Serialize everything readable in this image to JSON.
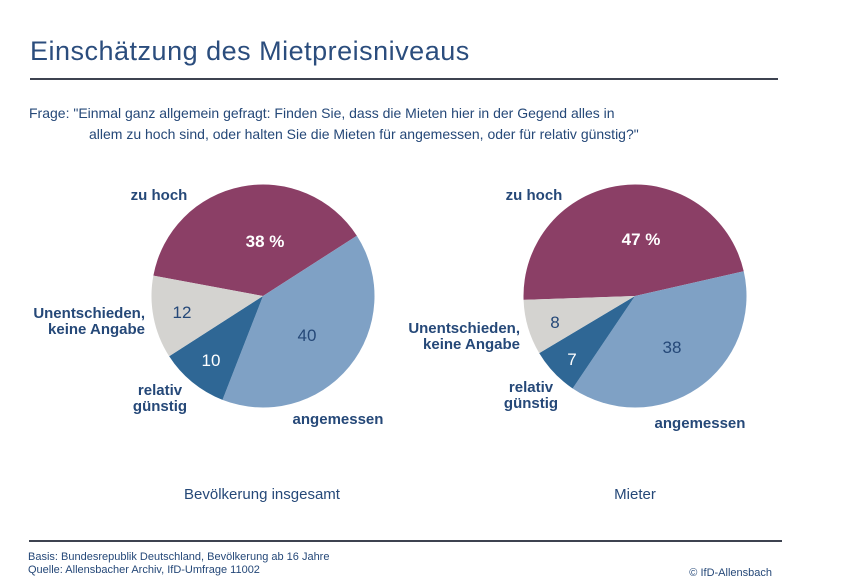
{
  "header": {
    "title": "Einschätzung des Mietpreisniveaus",
    "question_line1": "Frage: \"Einmal ganz allgemein gefragt: Finden Sie, dass die Mieten hier in der Gegend alles in",
    "question_line2": "allem zu hoch sind, oder halten Sie die Mieten für angemessen, oder für relativ günstig?\""
  },
  "colors": {
    "text_navy": "#254878",
    "title_navy": "#2b4d7d",
    "divider": "#3d4350",
    "slice_zu_hoch": "#8B3F66",
    "slice_angemessen": "#7FA1C5",
    "slice_relativ_guenstig": "#2F6795",
    "slice_unentschieden": "#D4D3D0",
    "value_label_light": "#ffffff"
  },
  "chart_data": [
    {
      "type": "pie",
      "title": "Bevölkerung insgesamt",
      "unit": "percent",
      "direction": "clockwise",
      "start_angle_deg": 280.5,
      "legend": false,
      "label_position": "outside",
      "value_labels": "inside",
      "slices": [
        {
          "label": "zu hoch",
          "value": 38,
          "display": "38 %",
          "color": "#8B3F66"
        },
        {
          "label": "angemessen",
          "value": 40,
          "display": "40",
          "color": "#7FA1C5"
        },
        {
          "label": "relativ günstig",
          "value": 10,
          "display": "10",
          "color": "#2F6795"
        },
        {
          "label": "Unentschieden, keine Angabe",
          "value": 12,
          "display": "12",
          "color": "#D4D3D0"
        }
      ]
    },
    {
      "type": "pie",
      "title": "Mieter",
      "unit": "percent",
      "direction": "clockwise",
      "start_angle_deg": 268,
      "legend": false,
      "label_position": "outside",
      "value_labels": "inside",
      "slices": [
        {
          "label": "zu hoch",
          "value": 47,
          "display": "47 %",
          "color": "#8B3F66"
        },
        {
          "label": "angemessen",
          "value": 38,
          "display": "38",
          "color": "#7FA1C5"
        },
        {
          "label": "relativ günstig",
          "value": 7,
          "display": "7",
          "color": "#2F6795"
        },
        {
          "label": "Unentschieden, keine Angabe",
          "value": 8,
          "display": "8",
          "color": "#D4D3D0"
        }
      ]
    }
  ],
  "footer": {
    "basis": "Basis: Bundesrepublik Deutschland, Bevölkerung ab 16 Jahre",
    "quelle": "Quelle: Allensbacher Archiv, IfD-Umfrage 11002",
    "copyright": "© IfD-Allensbach"
  }
}
